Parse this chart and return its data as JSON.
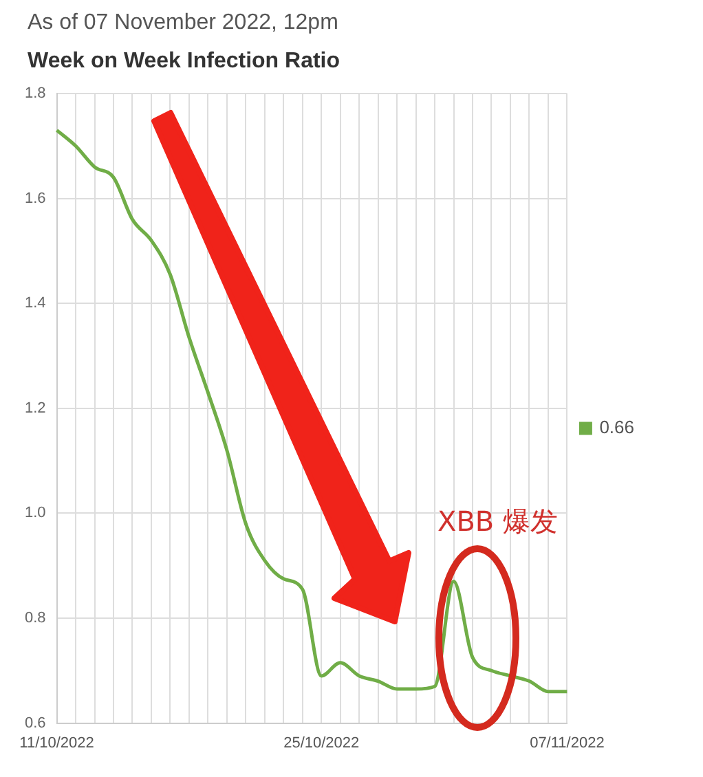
{
  "chart_data": {
    "type": "line",
    "title": "Week on Week Infection Ratio",
    "subtitle": "As of 07 November 2022, 12pm",
    "categories": [
      "11/10/2022",
      null,
      null,
      null,
      null,
      null,
      null,
      null,
      null,
      null,
      null,
      null,
      null,
      null,
      "25/10/2022",
      null,
      null,
      null,
      null,
      null,
      null,
      null,
      null,
      null,
      null,
      null,
      null,
      "07/11/2022"
    ],
    "series": [
      {
        "name": "0.66",
        "color": "#70ad47",
        "values": [
          1.73,
          1.7,
          1.66,
          1.64,
          1.56,
          1.52,
          1.455,
          1.335,
          1.23,
          1.12,
          0.98,
          0.91,
          0.875,
          0.855,
          0.69,
          0.715,
          0.69,
          0.68,
          0.665,
          0.665,
          0.67,
          0.87,
          0.725,
          0.7,
          0.69,
          0.68,
          0.66,
          0.66
        ]
      }
    ],
    "ylim": [
      0.6,
      1.8
    ],
    "yticks": [
      {
        "value": 0.6,
        "label": "0.6"
      },
      {
        "value": 0.8,
        "label": "0.8"
      },
      {
        "value": 1,
        "label": "1.0"
      },
      {
        "value": 1.2,
        "label": "1.2"
      },
      {
        "value": 1.4,
        "label": "1.4"
      },
      {
        "value": 1.6,
        "label": "1.6"
      },
      {
        "value": 1.8,
        "label": "1.8"
      }
    ],
    "grid": true,
    "legend": "right",
    "marker": "none",
    "line_style": "solid",
    "annotations": [
      "XBB 爆发"
    ]
  }
}
